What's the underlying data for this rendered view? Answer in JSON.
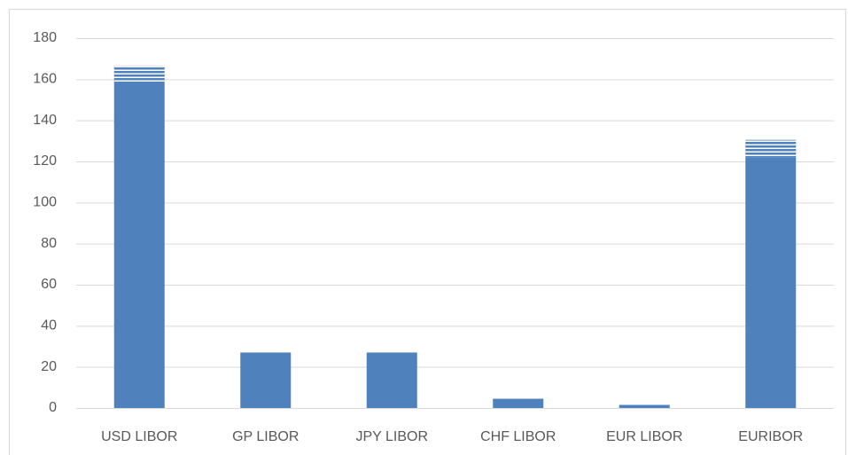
{
  "chart_data": {
    "type": "stacked_bar",
    "categories": [
      "USD LIBOR",
      "GP LIBOR",
      "JPY LIBOR",
      "CHF LIBOR",
      "EUR LIBOR",
      "EURIBOR"
    ],
    "series": [
      {
        "color": "#4f81bd",
        "pattern": "solid",
        "values": [
          158,
          27,
          27,
          4.5,
          1.5,
          122
        ]
      },
      {
        "color": "#4f81bd",
        "pattern": "horizontal-stripes",
        "values": [
          8.5,
          0,
          0,
          0,
          0,
          8.5
        ]
      }
    ],
    "ylim": [
      0,
      180
    ],
    "yticks": [
      0,
      20,
      40,
      60,
      80,
      100,
      120,
      140,
      160,
      180
    ],
    "grid": true
  }
}
